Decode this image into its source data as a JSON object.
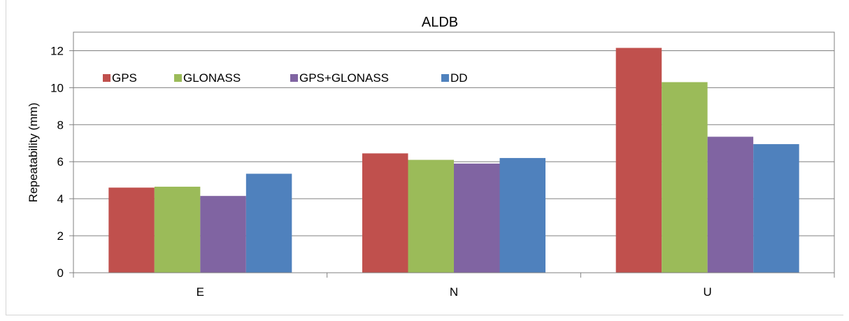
{
  "chart_data": {
    "type": "bar",
    "title": "ALDB",
    "xlabel": "",
    "ylabel": "Repeatability (mm)",
    "ylim": [
      0,
      13
    ],
    "yticks": [
      0,
      2,
      4,
      6,
      8,
      10,
      12
    ],
    "grid": true,
    "legend_position": "top-left",
    "categories": [
      "E",
      "N",
      "U"
    ],
    "series": [
      {
        "name": "GPS",
        "color": "#c0504d",
        "values": [
          4.6,
          6.45,
          12.15
        ]
      },
      {
        "name": "GLONASS",
        "color": "#9bbb59",
        "values": [
          4.65,
          6.1,
          10.3
        ]
      },
      {
        "name": "GPS+GLONASS",
        "color": "#8064a2",
        "values": [
          4.15,
          5.9,
          7.35
        ]
      },
      {
        "name": "DD",
        "color": "#4f81bd",
        "values": [
          5.35,
          6.2,
          6.95
        ]
      }
    ]
  }
}
